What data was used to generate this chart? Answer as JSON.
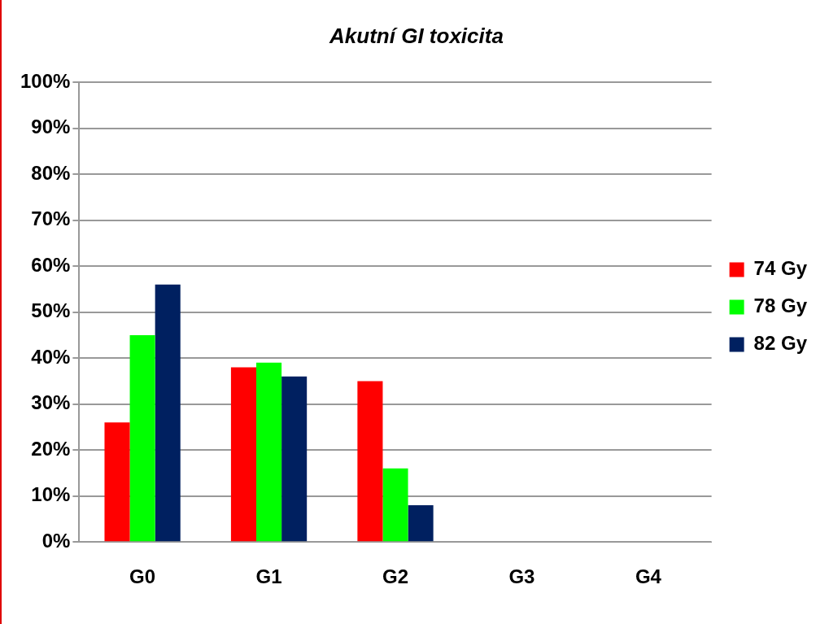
{
  "chart_data": {
    "type": "bar",
    "title": "Akutní GI toxicita",
    "categories": [
      "G0",
      "G1",
      "G2",
      "G3",
      "G4"
    ],
    "series": [
      {
        "name": "74 Gy",
        "color": "#ff0000",
        "values": [
          26,
          38,
          35,
          0,
          0
        ]
      },
      {
        "name": "78 Gy",
        "color": "#00ff00",
        "values": [
          45,
          39,
          16,
          0,
          0
        ]
      },
      {
        "name": "82 Gy",
        "color": "#002060",
        "values": [
          56,
          36,
          8,
          0,
          0
        ]
      }
    ],
    "ylim": [
      0,
      100
    ],
    "yticks": [
      {
        "value": 0,
        "label": "0%"
      },
      {
        "value": 10,
        "label": "10%"
      },
      {
        "value": 20,
        "label": "20%"
      },
      {
        "value": 30,
        "label": "30%"
      },
      {
        "value": 40,
        "label": "40%"
      },
      {
        "value": 50,
        "label": "50%"
      },
      {
        "value": 60,
        "label": "60%"
      },
      {
        "value": 70,
        "label": "70%"
      },
      {
        "value": 80,
        "label": "80%"
      },
      {
        "value": 90,
        "label": "90%"
      },
      {
        "value": 100,
        "label": "100%"
      }
    ],
    "grid": "y",
    "legend": "right"
  }
}
